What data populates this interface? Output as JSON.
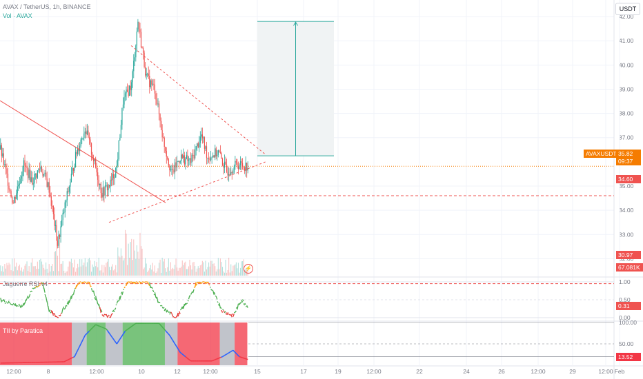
{
  "header": {
    "symbol_line": "AVAX / TetherUS, 1h, BINANCE",
    "volume_line": "Vol · AVAX",
    "unit": "USDT"
  },
  "colors": {
    "up": "#26a69a",
    "down": "#ef5350",
    "pattern": "#ef5350",
    "accent": "#f57c00",
    "rsi_high": "#ff9800",
    "rsi_mid": "#4caf50",
    "rsi_low": "#e53935",
    "tii_red": "#f23645",
    "tii_gray": "#b2b5be",
    "tii_green": "#4caf50",
    "tii_line": "#2962ff"
  },
  "price_axis": {
    "ticks": [
      "42.00",
      "41.00",
      "40.00",
      "39.00",
      "38.00",
      "37.00",
      "35.00",
      "34.00",
      "33.00",
      "32.00"
    ]
  },
  "time_axis": {
    "ticks": [
      "12:00",
      "8",
      "12:00",
      "10",
      "12",
      "12:00",
      "15",
      "17",
      "19",
      "12:00",
      "22",
      "24",
      "26",
      "12:00",
      "29",
      "12:00",
      "Feb"
    ]
  },
  "tags": {
    "symbol": "AVAXUSDT",
    "last_price": "35.82",
    "countdown": "09:37",
    "support_1": "34.60",
    "support_2": "30.97",
    "volume": "67.081K",
    "rsi_value": "0.31",
    "tii_value": "13.52"
  },
  "panes": {
    "rsi": {
      "title": "Jaguerre RSI v4",
      "ticks": [
        "1.00",
        "0.50",
        "0.00"
      ]
    },
    "tii": {
      "title": "TII by Paratica",
      "ticks": [
        "100.00",
        "50.00"
      ]
    }
  },
  "chart_data": {
    "type": "candlestick",
    "title": "AVAX / TetherUS, 1h, BINANCE",
    "ylim": [
      31.3,
      42.4
    ],
    "last_price": 35.82,
    "horizontal_levels": [
      34.6,
      30.97
    ],
    "target_box": {
      "from": 36.25,
      "to": 41.8
    },
    "triangle": {
      "upper_start": 40.8,
      "upper_end": 36.3,
      "lower_start": 33.5,
      "lower_end": 36.0
    },
    "trendline": {
      "from": 38.3,
      "to": 34.6
    },
    "price_path": [
      {
        "t": 0,
        "p": 36.5
      },
      {
        "t": 12,
        "p": 34.3
      },
      {
        "t": 22,
        "p": 35.9
      },
      {
        "t": 30,
        "p": 35.2
      },
      {
        "t": 38,
        "p": 35.8
      },
      {
        "t": 46,
        "p": 34.9
      },
      {
        "t": 54,
        "p": 32.6
      },
      {
        "t": 62,
        "p": 34.4
      },
      {
        "t": 72,
        "p": 36.4
      },
      {
        "t": 80,
        "p": 37.4
      },
      {
        "t": 88,
        "p": 36.1
      },
      {
        "t": 96,
        "p": 34.7
      },
      {
        "t": 104,
        "p": 35.1
      },
      {
        "t": 110,
        "p": 35.8
      },
      {
        "t": 116,
        "p": 38.5
      },
      {
        "t": 124,
        "p": 39.2
      },
      {
        "t": 130,
        "p": 41.8
      },
      {
        "t": 138,
        "p": 39.5
      },
      {
        "t": 146,
        "p": 39.0
      },
      {
        "t": 154,
        "p": 36.9
      },
      {
        "t": 162,
        "p": 35.5
      },
      {
        "t": 170,
        "p": 36.2
      },
      {
        "t": 180,
        "p": 36.0
      },
      {
        "t": 190,
        "p": 37.1
      },
      {
        "t": 196,
        "p": 36.2
      },
      {
        "t": 206,
        "p": 36.4
      },
      {
        "t": 214,
        "p": 35.6
      },
      {
        "t": 224,
        "p": 35.9
      },
      {
        "t": 234,
        "p": 35.82
      }
    ],
    "rsi_path": [
      {
        "t": 0,
        "v": 0.5
      },
      {
        "t": 20,
        "v": 0.3
      },
      {
        "t": 32,
        "v": 0.85
      },
      {
        "t": 40,
        "v": 0.95
      },
      {
        "t": 46,
        "v": 0.2
      },
      {
        "t": 54,
        "v": 0.0
      },
      {
        "t": 66,
        "v": 0.5
      },
      {
        "t": 74,
        "v": 1.0
      },
      {
        "t": 84,
        "v": 1.0
      },
      {
        "t": 96,
        "v": 0.1
      },
      {
        "t": 104,
        "v": 0.0
      },
      {
        "t": 112,
        "v": 0.5
      },
      {
        "t": 120,
        "v": 1.0
      },
      {
        "t": 140,
        "v": 1.0
      },
      {
        "t": 152,
        "v": 0.3
      },
      {
        "t": 166,
        "v": 0.0
      },
      {
        "t": 178,
        "v": 0.5
      },
      {
        "t": 186,
        "v": 1.0
      },
      {
        "t": 196,
        "v": 1.0
      },
      {
        "t": 210,
        "v": 0.2
      },
      {
        "t": 220,
        "v": 0.05
      },
      {
        "t": 228,
        "v": 0.5
      },
      {
        "t": 234,
        "v": 0.31
      }
    ],
    "tii_path": [
      {
        "t": 0,
        "v": 5
      },
      {
        "t": 60,
        "v": 8
      },
      {
        "t": 70,
        "v": 20
      },
      {
        "t": 80,
        "v": 70
      },
      {
        "t": 90,
        "v": 95
      },
      {
        "t": 100,
        "v": 85
      },
      {
        "t": 110,
        "v": 50
      },
      {
        "t": 118,
        "v": 80
      },
      {
        "t": 128,
        "v": 98
      },
      {
        "t": 150,
        "v": 98
      },
      {
        "t": 160,
        "v": 70
      },
      {
        "t": 170,
        "v": 30
      },
      {
        "t": 180,
        "v": 10
      },
      {
        "t": 200,
        "v": 10
      },
      {
        "t": 210,
        "v": 20
      },
      {
        "t": 220,
        "v": 35
      },
      {
        "t": 226,
        "v": 20
      },
      {
        "t": 234,
        "v": 13.52
      }
    ],
    "tii_zones": [
      {
        "from": 0,
        "to": 68,
        "state": "bearish"
      },
      {
        "from": 68,
        "to": 82,
        "state": "neutral"
      },
      {
        "from": 82,
        "to": 100,
        "state": "bullish"
      },
      {
        "from": 100,
        "to": 116,
        "state": "neutral"
      },
      {
        "from": 116,
        "to": 156,
        "state": "bullish"
      },
      {
        "from": 156,
        "to": 168,
        "state": "neutral"
      },
      {
        "from": 168,
        "to": 208,
        "state": "bearish"
      },
      {
        "from": 208,
        "to": 222,
        "state": "neutral"
      },
      {
        "from": 222,
        "to": 234,
        "state": "bearish"
      }
    ]
  }
}
